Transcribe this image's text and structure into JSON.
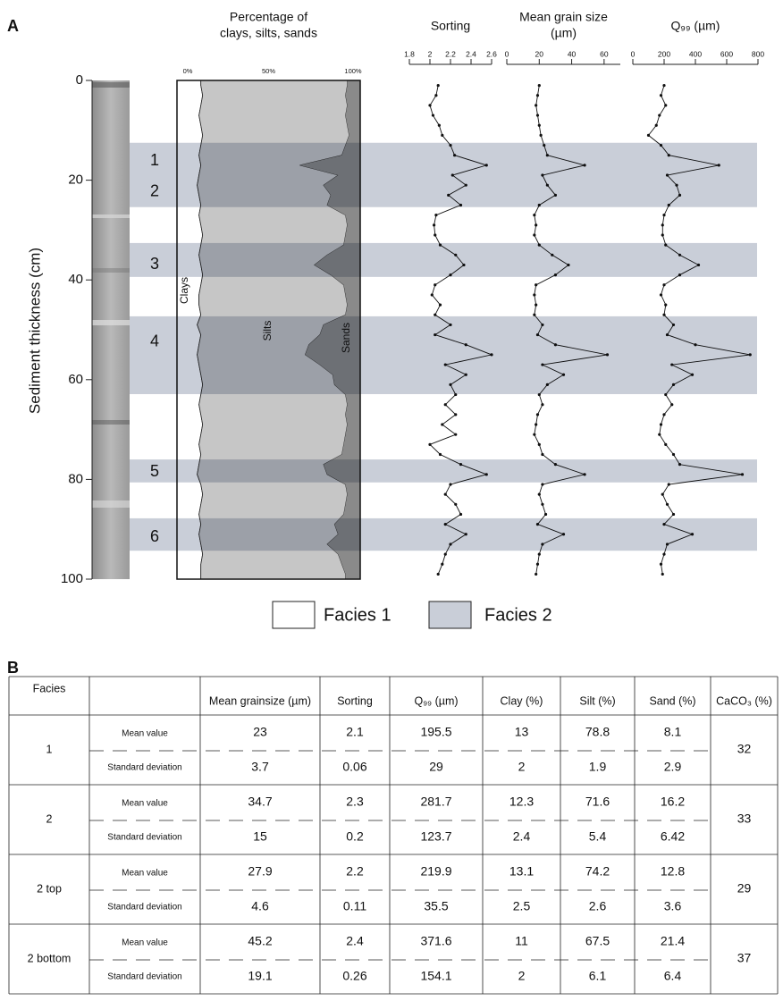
{
  "panel_labels": [
    "A",
    "B"
  ],
  "chart_data": [
    {
      "type": "stacked-area",
      "title": [
        "Percentage of",
        "clays, silts, sands"
      ],
      "ylabel": "Sediment thickness (cm)",
      "ylim": [
        0,
        100
      ],
      "yticks": [
        0,
        20,
        40,
        60,
        80,
        100
      ],
      "xlim": [
        0,
        100
      ],
      "xticks": [
        {
          "value": 0,
          "label": "0%"
        },
        {
          "value": 50,
          "label": "50%"
        },
        {
          "value": 100,
          "label": "100%"
        }
      ],
      "y": [
        1,
        3,
        5,
        7,
        9,
        11,
        13,
        15,
        17,
        19,
        21,
        23,
        25,
        27,
        29,
        31,
        33,
        35,
        37,
        39,
        41,
        43,
        45,
        47,
        49,
        51,
        53,
        55,
        57,
        59,
        61,
        63,
        65,
        67,
        69,
        71,
        73,
        75,
        77,
        79,
        81,
        83,
        85,
        87,
        89,
        91,
        93,
        95,
        97,
        99
      ],
      "series": [
        {
          "name": "Clays",
          "color": "#ffffff",
          "values": [
            13,
            14,
            13,
            12,
            13,
            14,
            13,
            12,
            13,
            12,
            11,
            12,
            13,
            12,
            13,
            14,
            13,
            12,
            13,
            14,
            13,
            12,
            12,
            13,
            11,
            13,
            12,
            11,
            12,
            13,
            14,
            13,
            12,
            13,
            14,
            13,
            12,
            13,
            12,
            11,
            13,
            14,
            13,
            12,
            13,
            12,
            13,
            14,
            13,
            13
          ]
        },
        {
          "name": "Silts",
          "color": "#c6c6c6",
          "values": [
            80,
            78,
            80,
            80,
            80,
            80,
            79,
            78,
            54,
            76,
            69,
            72,
            69,
            80,
            80,
            78,
            78,
            70,
            62,
            70,
            78,
            80,
            81,
            79,
            69,
            65,
            60,
            59,
            66,
            72,
            72,
            79,
            81,
            79,
            79,
            79,
            79,
            77,
            68,
            71,
            79,
            79,
            79,
            79,
            73,
            76,
            69,
            74,
            77,
            79
          ]
        },
        {
          "name": "Sands",
          "color": "#8a8a8a",
          "values": [
            7,
            8,
            7,
            8,
            7,
            6,
            8,
            10,
            33,
            12,
            20,
            16,
            18,
            8,
            7,
            8,
            9,
            18,
            25,
            16,
            9,
            8,
            7,
            8,
            20,
            22,
            28,
            30,
            22,
            15,
            14,
            8,
            7,
            8,
            7,
            8,
            9,
            10,
            20,
            18,
            8,
            7,
            8,
            9,
            14,
            12,
            18,
            12,
            10,
            8
          ]
        }
      ]
    },
    {
      "type": "line",
      "title": [
        "Sorting"
      ],
      "color": "#111111",
      "xlim": [
        1.8,
        2.6
      ],
      "xticks": [
        1.8,
        2,
        2.2,
        2.4,
        2.6
      ],
      "y": [
        1,
        3,
        5,
        7,
        9,
        11,
        13,
        15,
        17,
        19,
        21,
        23,
        25,
        27,
        29,
        31,
        33,
        35,
        37,
        39,
        41,
        43,
        45,
        47,
        49,
        51,
        53,
        55,
        57,
        59,
        61,
        63,
        65,
        67,
        69,
        71,
        73,
        75,
        77,
        79,
        81,
        83,
        85,
        87,
        89,
        91,
        93,
        95,
        97,
        99
      ],
      "values": [
        2.08,
        2.06,
        2,
        2.03,
        2.09,
        2.12,
        2.2,
        2.24,
        2.55,
        2.22,
        2.35,
        2.18,
        2.3,
        2.06,
        2.04,
        2.05,
        2.1,
        2.25,
        2.33,
        2.2,
        2.05,
        2.02,
        2.1,
        2.05,
        2.2,
        2.05,
        2.35,
        2.6,
        2.15,
        2.35,
        2.2,
        2.25,
        2.15,
        2.25,
        2.12,
        2.25,
        2,
        2.1,
        2.3,
        2.55,
        2.2,
        2.15,
        2.25,
        2.3,
        2.15,
        2.35,
        2.2,
        2.15,
        2.12,
        2.08
      ]
    },
    {
      "type": "line",
      "title": [
        "Mean grain size",
        "(µm)"
      ],
      "color": "#111111",
      "xlim": [
        0,
        70
      ],
      "xticks": [
        0,
        20,
        40,
        60
      ],
      "y": [
        1,
        3,
        5,
        7,
        9,
        11,
        13,
        15,
        17,
        19,
        21,
        23,
        25,
        27,
        29,
        31,
        33,
        35,
        37,
        39,
        41,
        43,
        45,
        47,
        49,
        51,
        53,
        55,
        57,
        59,
        61,
        63,
        65,
        67,
        69,
        71,
        73,
        75,
        77,
        79,
        81,
        83,
        85,
        87,
        89,
        91,
        93,
        95,
        97,
        99
      ],
      "values": [
        20,
        19,
        18,
        19,
        20,
        21,
        23,
        25,
        48,
        22,
        25,
        30,
        20,
        17,
        18,
        17,
        20,
        28,
        38,
        30,
        18,
        17,
        18,
        17,
        22,
        19,
        30,
        62,
        22,
        35,
        25,
        20,
        22,
        19,
        18,
        17,
        20,
        22,
        30,
        48,
        22,
        20,
        22,
        24,
        19,
        35,
        22,
        20,
        19,
        18
      ]
    },
    {
      "type": "line",
      "title": [
        "Q₉₉ (µm)"
      ],
      "color": "#111111",
      "xlim": [
        0,
        800
      ],
      "xticks": [
        0,
        200,
        400,
        600,
        800
      ],
      "y": [
        1,
        3,
        5,
        7,
        9,
        11,
        13,
        15,
        17,
        19,
        21,
        23,
        25,
        27,
        29,
        31,
        33,
        35,
        37,
        39,
        41,
        43,
        45,
        47,
        49,
        51,
        53,
        55,
        57,
        59,
        61,
        63,
        65,
        67,
        69,
        71,
        73,
        75,
        77,
        79,
        81,
        83,
        85,
        87,
        89,
        91,
        93,
        95,
        97,
        99
      ],
      "values": [
        200,
        180,
        210,
        170,
        150,
        100,
        180,
        230,
        550,
        220,
        280,
        300,
        230,
        200,
        190,
        190,
        210,
        300,
        420,
        300,
        200,
        180,
        210,
        200,
        260,
        220,
        400,
        750,
        250,
        380,
        260,
        210,
        250,
        200,
        180,
        170,
        210,
        260,
        300,
        700,
        230,
        190,
        220,
        260,
        200,
        380,
        220,
        200,
        180,
        190
      ]
    }
  ],
  "zones": [
    {
      "from": 12.5,
      "to": 25.4
    },
    {
      "from": 32.6,
      "to": 39.4
    },
    {
      "from": 47.3,
      "to": 62.9
    },
    {
      "from": 76,
      "to": 80.6
    },
    {
      "from": 87.8,
      "to": 94.3
    }
  ],
  "zone_labels": [
    {
      "text": "1",
      "depth": 16.2
    },
    {
      "text": "2",
      "depth": 22.4
    },
    {
      "text": "3",
      "depth": 37
    },
    {
      "text": "4",
      "depth": 52.5
    },
    {
      "text": "5",
      "depth": 78.5
    },
    {
      "text": "6",
      "depth": 91.6
    }
  ],
  "legend": [
    {
      "label": "Facies 1",
      "color": "#ffffff"
    },
    {
      "label": "Facies 2",
      "color": "#c9ced8"
    }
  ],
  "table": {
    "headers": [
      "Facies",
      "Mean grainsize (µm)",
      "Sorting",
      "Q₉₉ (µm)",
      "Clay (%)",
      "Silt (%)",
      "Sand (%)",
      "CaCO₃ (%)"
    ],
    "stat_labels": [
      "Mean value",
      "Standard deviation"
    ],
    "groups": [
      {
        "facies": "1",
        "mean": [
          23,
          2.1,
          195.5,
          13,
          78.8,
          8.1
        ],
        "sd": [
          3.7,
          0.06,
          29,
          2,
          1.9,
          2.9
        ],
        "caco3": 32
      },
      {
        "facies": "2",
        "mean": [
          34.7,
          2.3,
          281.7,
          12.3,
          71.6,
          16.2
        ],
        "sd": [
          15,
          0.2,
          123.7,
          2.4,
          5.4,
          6.42
        ],
        "caco3": 33
      },
      {
        "facies": "2 top",
        "mean": [
          27.9,
          2.2,
          219.9,
          13.1,
          74.2,
          12.8
        ],
        "sd": [
          4.6,
          0.11,
          35.5,
          2.5,
          2.6,
          3.6
        ],
        "caco3": 29
      },
      {
        "facies": "2 bottom",
        "mean": [
          45.2,
          2.4,
          371.6,
          11,
          67.5,
          21.4
        ],
        "sd": [
          19.1,
          0.26,
          154.1,
          2,
          6.1,
          6.4
        ],
        "caco3": 37
      }
    ]
  }
}
